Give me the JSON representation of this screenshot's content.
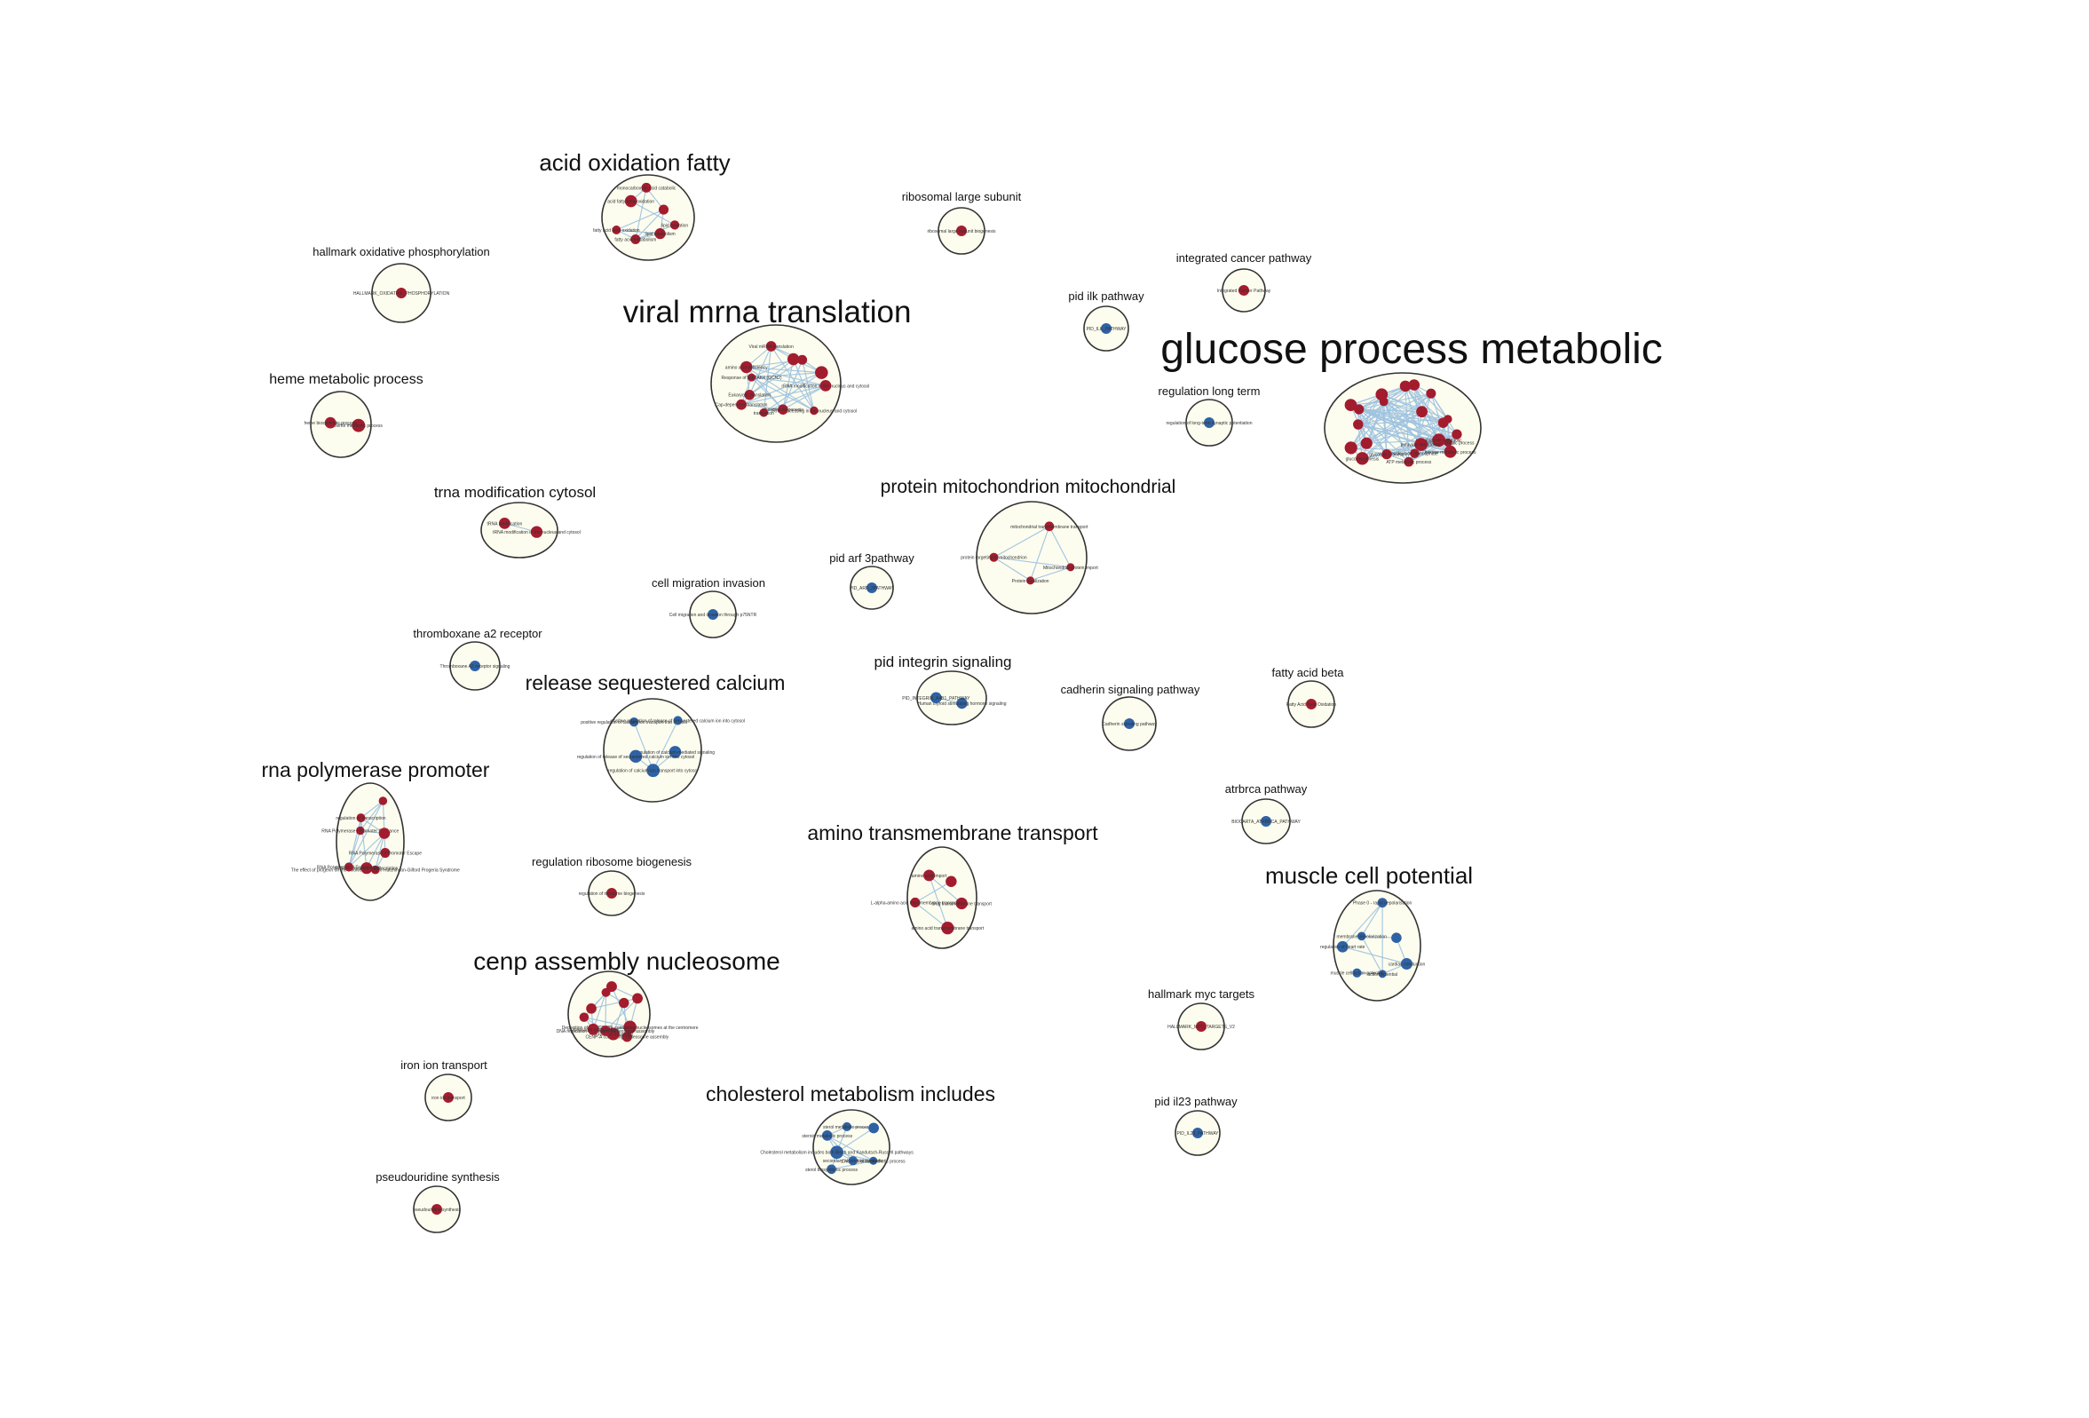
{
  "colors": {
    "up": "#a31c2e",
    "down": "#2e62a4",
    "cluster_fill": "#fdfdef",
    "cluster_stroke": "#333333",
    "edge": "#9fc3e0",
    "text": "#111111"
  },
  "clusters": [
    {
      "title": "acid oxidation fatty",
      "nodes": [
        {
          "label": "lipid oxidation",
          "color": "up"
        },
        {
          "label": "lipid catabolism",
          "color": "up"
        },
        {
          "label": "fatty acid metabolism",
          "color": "up"
        },
        {
          "label": "fatty acid beta oxidation",
          "color": "up"
        },
        {
          "label": "acid fatty beta-oxidation",
          "color": "up"
        },
        {
          "label": "monocarboxylic acid catabolic",
          "color": "up"
        },
        {
          "label": "",
          "color": "up"
        }
      ]
    },
    {
      "title": "ribosomal large subunit",
      "nodes": [
        {
          "label": "ribosomal large subunit biogenesis",
          "color": "up"
        }
      ]
    },
    {
      "title": "hallmark oxidative phosphorylation",
      "nodes": [
        {
          "label": "HALLMARK_OXIDATIVE_PHOSPHORYLATION",
          "color": "up"
        }
      ]
    },
    {
      "title": "integrated cancer pathway",
      "nodes": [
        {
          "label": "Integrated Cancer Pathway",
          "color": "up"
        }
      ]
    },
    {
      "title": "pid ilk pathway",
      "nodes": [
        {
          "label": "PID_ILK_PATHWAY",
          "color": "down"
        }
      ]
    },
    {
      "title": "viral mrna translation",
      "nodes": [
        {
          "label": "rRNA modification in the nucleus and cytosol",
          "color": "up"
        },
        {
          "label": "rRNA processing in the nucleus and cytosol",
          "color": "up"
        },
        {
          "label": "ribosome biogenesis",
          "color": "up"
        },
        {
          "label": "translation",
          "color": "up"
        },
        {
          "label": "Cap-dependent translation",
          "color": "up"
        },
        {
          "label": "Eukaryotic translation",
          "color": "up"
        },
        {
          "label": "Response of EIF2AK4 (GCN2)",
          "color": "up"
        },
        {
          "label": "amino acid deficiency",
          "color": "up"
        },
        {
          "label": "Viral mRNA translation",
          "color": "up"
        },
        {
          "label": "",
          "color": "up"
        },
        {
          "label": "",
          "color": "up"
        },
        {
          "label": "",
          "color": "up"
        }
      ]
    },
    {
      "title": "glucose process metabolic",
      "nodes": [
        {
          "label": "glucose metabolic process",
          "color": "up"
        },
        {
          "label": "carbohydrate metabolic",
          "color": "up"
        },
        {
          "label": "hexose metabolic process",
          "color": "up"
        },
        {
          "label": "pyruvate metabolism",
          "color": "up"
        },
        {
          "label": "nucleoside triphosphate",
          "color": "up"
        },
        {
          "label": "ATP metabolic process",
          "color": "up"
        },
        {
          "label": "glycolytic process",
          "color": "up"
        },
        {
          "label": "gluconeogenesis",
          "color": "up"
        },
        {
          "label": "",
          "color": "up"
        },
        {
          "label": "",
          "color": "up"
        },
        {
          "label": "",
          "color": "up"
        },
        {
          "label": "",
          "color": "up"
        },
        {
          "label": "",
          "color": "up"
        },
        {
          "label": "",
          "color": "up"
        },
        {
          "label": "",
          "color": "up"
        },
        {
          "label": "",
          "color": "up"
        },
        {
          "label": "",
          "color": "up"
        },
        {
          "label": "",
          "color": "up"
        },
        {
          "label": "",
          "color": "up"
        },
        {
          "label": "",
          "color": "up"
        },
        {
          "label": "",
          "color": "up"
        },
        {
          "label": "",
          "color": "up"
        }
      ]
    },
    {
      "title": "heme metabolic process",
      "nodes": [
        {
          "label": "heme metabolic process",
          "color": "up"
        },
        {
          "label": "heme biosynthetic process",
          "color": "up"
        }
      ]
    },
    {
      "title": "regulation long term",
      "nodes": [
        {
          "label": "regulation of long-term synaptic potentiation",
          "color": "down"
        }
      ]
    },
    {
      "title": "trna modification cytosol",
      "nodes": [
        {
          "label": "tRNA modification in the nucleus and cytosol",
          "color": "up"
        },
        {
          "label": "tRNA modification",
          "color": "up"
        }
      ]
    },
    {
      "title": "protein mitochondrion mitochondrial",
      "nodes": [
        {
          "label": "Mitochondrial protein import",
          "color": "up"
        },
        {
          "label": "Protein localization",
          "color": "up"
        },
        {
          "label": "protein targeting to mitochondrion",
          "color": "up"
        },
        {
          "label": "mitochondrial transmembrane transport",
          "color": "up"
        }
      ]
    },
    {
      "title": "pid arf 3pathway",
      "nodes": [
        {
          "label": "PID_ARF_3PATHWAY",
          "color": "down"
        }
      ]
    },
    {
      "title": "cell migration invasion",
      "nodes": [
        {
          "label": "Cell migration and invasion through p75NTR",
          "color": "down"
        }
      ]
    },
    {
      "title": "thromboxane a2 receptor",
      "nodes": [
        {
          "label": "Thromboxane A2 receptor signaling",
          "color": "down"
        }
      ]
    },
    {
      "title": "pid integrin signaling",
      "nodes": [
        {
          "label": "Human thyroid stimulating hormone signaling",
          "color": "down"
        },
        {
          "label": "PID_INTEGRIN_A4B1_PATHWAY",
          "color": "down"
        }
      ]
    },
    {
      "title": "release sequestered calcium",
      "nodes": [
        {
          "label": "regulation of calcium-mediated signaling",
          "color": "down"
        },
        {
          "label": "regulation of calcium ion transport into cytosol",
          "color": "down"
        },
        {
          "label": "regulation of release of sequestered calcium ion into cytosol",
          "color": "down"
        },
        {
          "label": "positive regulation of calcium ion transport into cytosol",
          "color": "down"
        },
        {
          "label": "positive regulation of release of sequestered calcium ion into cytosol",
          "color": "down"
        }
      ]
    },
    {
      "title": "cadherin signaling pathway",
      "nodes": [
        {
          "label": "Cadherin signaling pathway",
          "color": "down"
        }
      ]
    },
    {
      "title": "fatty acid beta",
      "nodes": [
        {
          "label": "Fatty Acid Beta Oxidation",
          "color": "up"
        }
      ]
    },
    {
      "title": "rna polymerase promoter",
      "nodes": [
        {
          "label": "RNA Polymerase II Promoter Escape",
          "color": "up"
        },
        {
          "label": "The effect of progerin on the involved genes in Hutchinson-Gilford Progeria Syndrome",
          "color": "up"
        },
        {
          "label": "RNA Polymerase I Transcription",
          "color": "up"
        },
        {
          "label": "RNA Polymerase II Transcription",
          "color": "up"
        },
        {
          "label": "RNA Polymerase I Promoter Clearance",
          "color": "up"
        },
        {
          "label": "regulation of transcription",
          "color": "up"
        },
        {
          "label": "",
          "color": "up"
        },
        {
          "label": "",
          "color": "up"
        }
      ]
    },
    {
      "title": "atrbrca pathway",
      "nodes": [
        {
          "label": "BIOCARTA_ATRBRCA_PATHWAY",
          "color": "down"
        }
      ]
    },
    {
      "title": "amino transmembrane transport",
      "nodes": [
        {
          "label": "drug transmembrane transport",
          "color": "up"
        },
        {
          "label": "amino acid transmembrane transport",
          "color": "up"
        },
        {
          "label": "L-alpha-amino acid transmembrane transport",
          "color": "up"
        },
        {
          "label": "amino acid import",
          "color": "up"
        },
        {
          "label": "",
          "color": "up"
        }
      ]
    },
    {
      "title": "regulation ribosome biogenesis",
      "nodes": [
        {
          "label": "regulation of ribosome biogenesis",
          "color": "up"
        }
      ]
    },
    {
      "title": "muscle cell potential",
      "nodes": [
        {
          "label": "cardiac conduction",
          "color": "down"
        },
        {
          "label": "action potential",
          "color": "down"
        },
        {
          "label": "muscle cell action potential",
          "color": "down"
        },
        {
          "label": "regulation of heart rate",
          "color": "down"
        },
        {
          "label": "membrane depolarization",
          "color": "down"
        },
        {
          "label": "Phase 0 - rapid depolarisation",
          "color": "down"
        },
        {
          "label": "",
          "color": "down"
        }
      ]
    },
    {
      "title": "cenp assembly nucleosome",
      "nodes": [
        {
          "label": "Deposition of new CENPA-containing nucleosomes at the centromere",
          "color": "up"
        },
        {
          "label": "CENP-A containing nucleosome assembly",
          "color": "up"
        },
        {
          "label": "chromatin assembly",
          "color": "up"
        },
        {
          "label": "DNA replication-dependent nucleosome assembly",
          "color": "up"
        },
        {
          "label": "nucleosome organization",
          "color": "up"
        },
        {
          "label": "",
          "color": "up"
        },
        {
          "label": "",
          "color": "up"
        },
        {
          "label": "",
          "color": "up"
        },
        {
          "label": "",
          "color": "up"
        },
        {
          "label": "",
          "color": "up"
        },
        {
          "label": "",
          "color": "up"
        }
      ]
    },
    {
      "title": "hallmark myc targets",
      "nodes": [
        {
          "label": "HALLMARK_MYC_TARGETS_V2",
          "color": "up"
        }
      ]
    },
    {
      "title": "iron ion transport",
      "nodes": [
        {
          "label": "iron ion transport",
          "color": "up"
        }
      ]
    },
    {
      "title": "cholesterol metabolism includes",
      "nodes": [
        {
          "label": "Cholesterol biosynthetic process",
          "color": "down"
        },
        {
          "label": "secondary alcohol biosynthetic",
          "color": "down"
        },
        {
          "label": "sterol biosynthetic process",
          "color": "down"
        },
        {
          "label": "Cholesterol metabolism includes both Bloch and Kandutsch-Russell pathways",
          "color": "down"
        },
        {
          "label": "steroid metabolic process",
          "color": "down"
        },
        {
          "label": "sterol metabolic process",
          "color": "down"
        },
        {
          "label": "",
          "color": "down"
        }
      ]
    },
    {
      "title": "pid il23 pathway",
      "nodes": [
        {
          "label": "PID_IL23_PATHWAY",
          "color": "down"
        }
      ]
    },
    {
      "title": "pseudouridine synthesis",
      "nodes": [
        {
          "label": "pseudouridine synthesis",
          "color": "up"
        }
      ]
    }
  ]
}
